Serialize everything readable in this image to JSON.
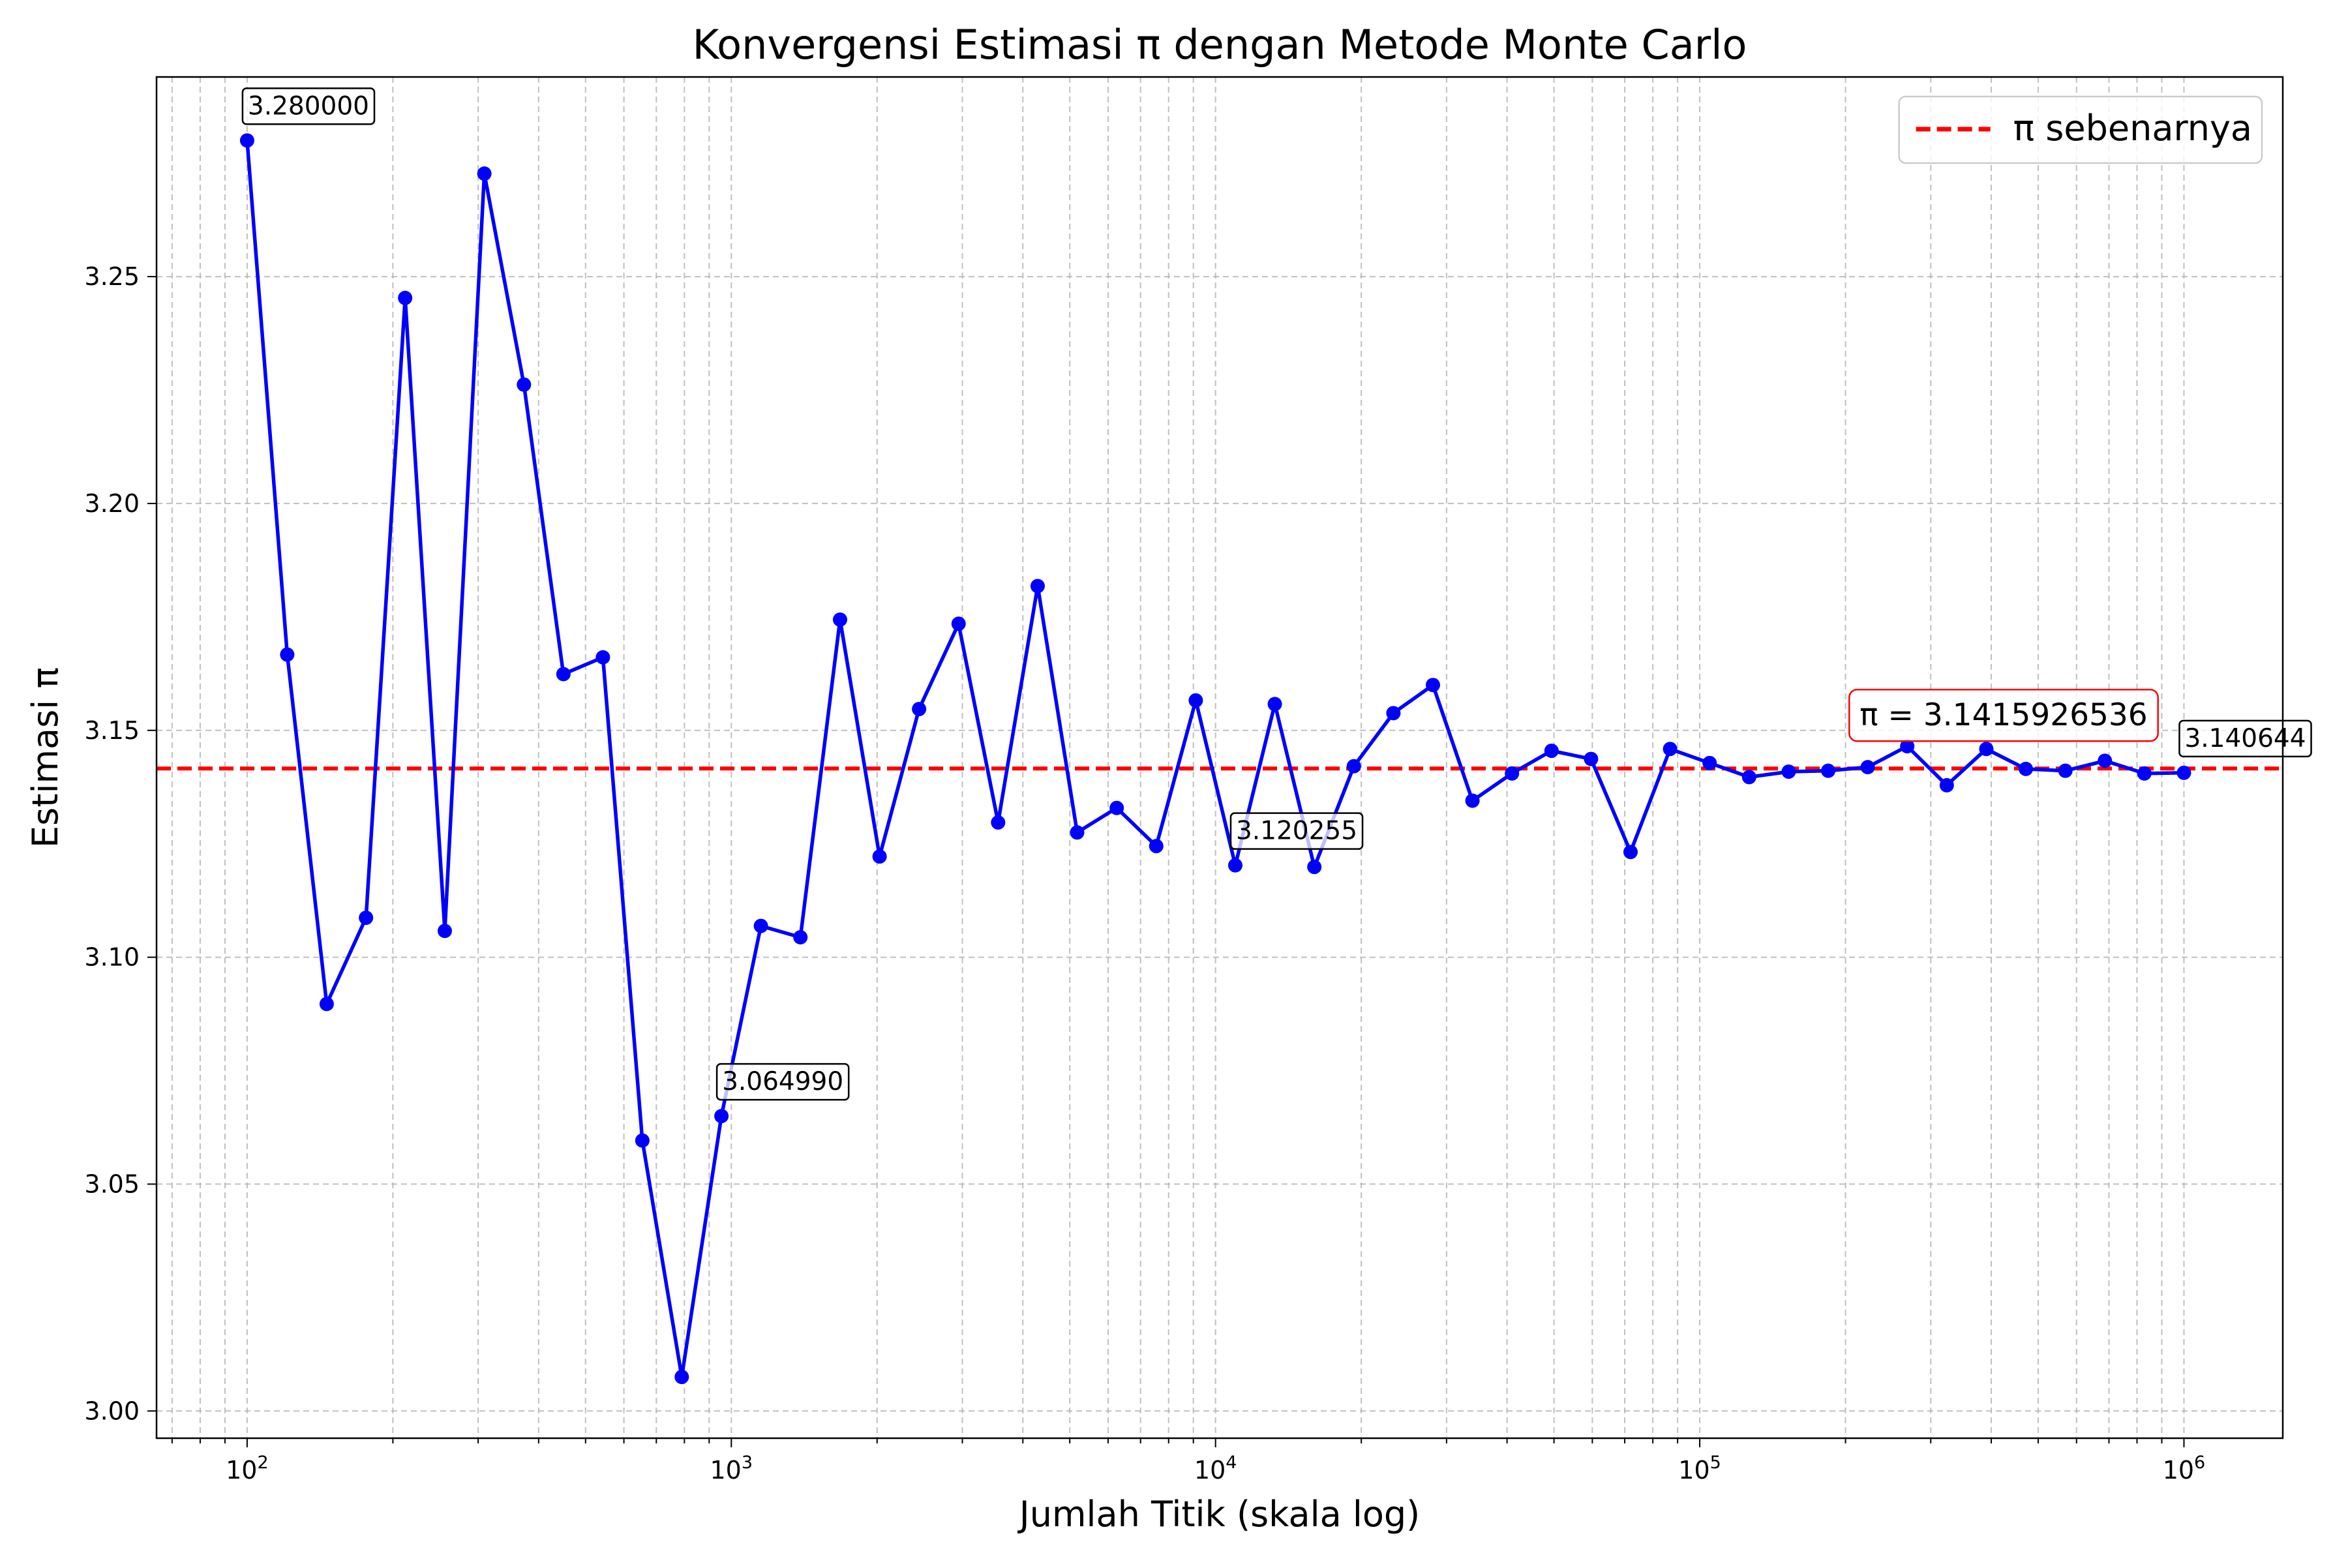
{
  "chart_data": {
    "type": "line",
    "title": "Konvergensi Estimasi π dengan Metode Monte Carlo",
    "xlabel": "Jumlah Titik (skala log)",
    "ylabel": "Estimasi π",
    "x_scale": "log",
    "xlim": [
      65,
      1600000
    ],
    "ylim": [
      2.994,
      3.294
    ],
    "x_ticks": [
      {
        "value": 100,
        "base": "10",
        "exp": "2"
      },
      {
        "value": 1000,
        "base": "10",
        "exp": "3"
      },
      {
        "value": 10000,
        "base": "10",
        "exp": "4"
      },
      {
        "value": 100000,
        "base": "10",
        "exp": "5"
      },
      {
        "value": 1000000,
        "base": "10",
        "exp": "6"
      }
    ],
    "y_ticks": [
      {
        "value": 3.0,
        "label": "3.00"
      },
      {
        "value": 3.05,
        "label": "3.05"
      },
      {
        "value": 3.1,
        "label": "3.10"
      },
      {
        "value": 3.15,
        "label": "3.15"
      },
      {
        "value": 3.2,
        "label": "3.20"
      },
      {
        "value": 3.25,
        "label": "3.25"
      }
    ],
    "grid": true,
    "legend": {
      "position": "top-right",
      "entries": [
        {
          "label": "π sebenarnya",
          "color": "#ff0000",
          "style": "dashed"
        }
      ]
    },
    "series": [
      {
        "color": "#0000ff",
        "style": "solid-markers",
        "x": [
          100,
          121,
          146,
          176,
          212,
          256,
          309,
          373,
          450,
          543,
          655,
          790,
          954,
          1151,
          1389,
          1677,
          2024,
          2442,
          2947,
          3556,
          4292,
          5179,
          6251,
          7543,
          9103,
          10985,
          13257,
          15999,
          19307,
          23300,
          28118,
          33932,
          40949,
          49417,
          59636,
          71968,
          86851,
          104811,
          126486,
          152642,
          184206,
          222299,
          268270,
          323746,
          390694,
          471487,
          568987,
          686649,
          828643,
          1000000
        ],
        "y": [
          3.28,
          3.1667,
          3.0897,
          3.1087,
          3.2453,
          3.1058,
          3.2727,
          3.2262,
          3.1624,
          3.1661,
          3.0596,
          3.0075,
          3.06499,
          3.1069,
          3.1044,
          3.1744,
          3.1222,
          3.1547,
          3.1735,
          3.1297,
          3.1818,
          3.1275,
          3.1329,
          3.1245,
          3.1566,
          3.120255,
          3.1558,
          3.1199,
          3.1421,
          3.1538,
          3.16,
          3.1345,
          3.1405,
          3.1455,
          3.1437,
          3.1232,
          3.1459,
          3.1428,
          3.1397,
          3.1409,
          3.1411,
          3.1419,
          3.1465,
          3.1379,
          3.1459,
          3.1415,
          3.1411,
          3.1433,
          3.1405,
          3.140644
        ]
      }
    ],
    "reference_line": {
      "y": 3.1415926536,
      "color": "#ff0000",
      "label": "π = 3.1415926536"
    },
    "annotations": [
      {
        "x": 100,
        "y": 3.28,
        "text": "3.280000"
      },
      {
        "x": 954,
        "y": 3.06499,
        "text": "3.064990"
      },
      {
        "x": 10985,
        "y": 3.120255,
        "text": "3.120255"
      },
      {
        "x": 1000000,
        "y": 3.140644,
        "text": "3.140644"
      }
    ]
  }
}
